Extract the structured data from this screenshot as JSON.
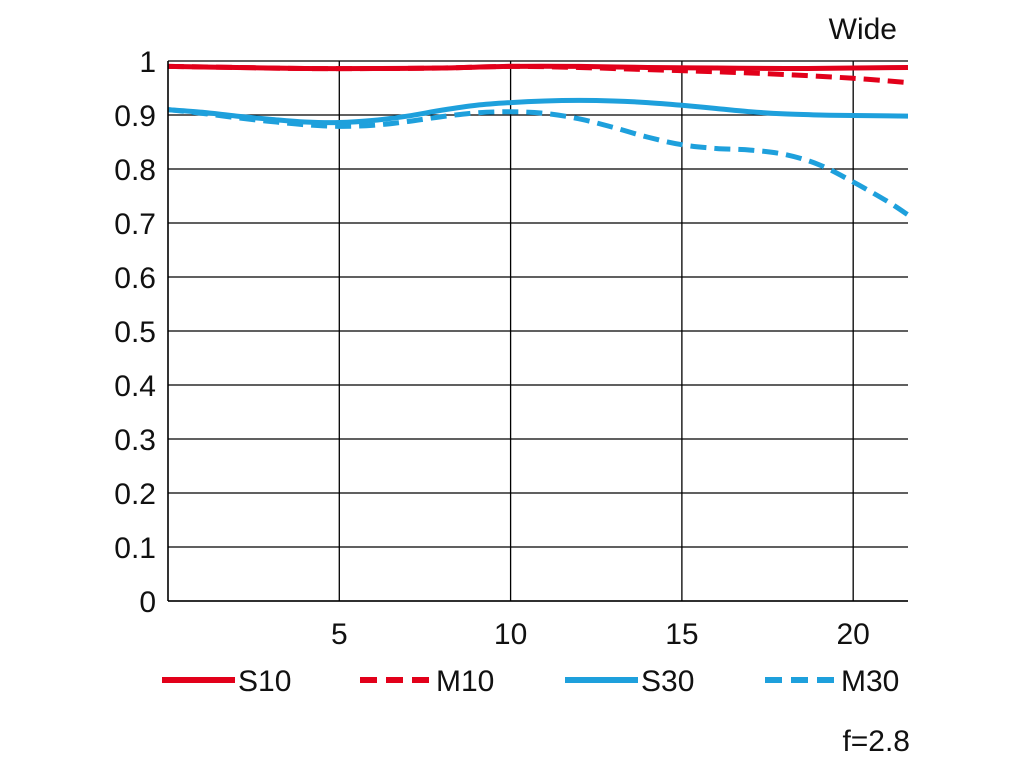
{
  "chart_data": {
    "type": "line",
    "title": "Wide",
    "annotation": "f=2.8",
    "xlabel": "",
    "ylabel": "",
    "xlim": [
      0,
      21.6
    ],
    "ylim": [
      0,
      1
    ],
    "grid": true,
    "legend_position": "bottom",
    "x_ticks": [
      5,
      10,
      15,
      20
    ],
    "y_ticks": [
      0,
      0.1,
      0.2,
      0.3,
      0.4,
      0.5,
      0.6,
      0.7,
      0.8,
      0.9,
      1
    ],
    "y_tick_labels": [
      "0",
      "0.1",
      "0.2",
      "0.3",
      "0.4",
      "0.5",
      "0.6",
      "0.7",
      "0.8",
      "0.9",
      "1"
    ],
    "x_tick_labels": [
      "5",
      "10",
      "15",
      "20"
    ],
    "series": [
      {
        "name": "S10",
        "color": "#e2001a",
        "style": "solid",
        "x": [
          0,
          2,
          4,
          6,
          8,
          10,
          12,
          14,
          16,
          18,
          20,
          21.6
        ],
        "y": [
          0.99,
          0.988,
          0.986,
          0.986,
          0.987,
          0.99,
          0.99,
          0.988,
          0.987,
          0.986,
          0.987,
          0.988
        ]
      },
      {
        "name": "M10",
        "color": "#e2001a",
        "style": "dashed",
        "x": [
          0,
          2,
          4,
          6,
          8,
          10,
          12,
          14,
          16,
          18,
          20,
          21.6
        ],
        "y": [
          0.99,
          0.988,
          0.986,
          0.986,
          0.987,
          0.99,
          0.988,
          0.984,
          0.98,
          0.975,
          0.968,
          0.96
        ]
      },
      {
        "name": "S30",
        "color": "#1ea0dc",
        "style": "solid",
        "x": [
          0,
          1,
          2,
          3,
          4,
          5,
          6,
          7,
          8,
          9,
          10,
          11,
          12,
          13,
          14,
          15,
          16,
          17,
          18,
          19,
          20,
          21.6
        ],
        "y": [
          0.91,
          0.905,
          0.898,
          0.892,
          0.887,
          0.886,
          0.89,
          0.898,
          0.909,
          0.918,
          0.923,
          0.926,
          0.927,
          0.926,
          0.923,
          0.918,
          0.912,
          0.906,
          0.902,
          0.9,
          0.899,
          0.898
        ]
      },
      {
        "name": "M30",
        "color": "#1ea0dc",
        "style": "dashed",
        "x": [
          0,
          1,
          2,
          3,
          4,
          5,
          6,
          7,
          8,
          9,
          10,
          11,
          12,
          13,
          14,
          15,
          16,
          17,
          18,
          19,
          20,
          21,
          21.6
        ],
        "y": [
          0.91,
          0.903,
          0.895,
          0.888,
          0.882,
          0.879,
          0.881,
          0.888,
          0.897,
          0.904,
          0.906,
          0.903,
          0.893,
          0.877,
          0.859,
          0.845,
          0.838,
          0.835,
          0.827,
          0.808,
          0.776,
          0.74,
          0.715
        ]
      }
    ]
  }
}
